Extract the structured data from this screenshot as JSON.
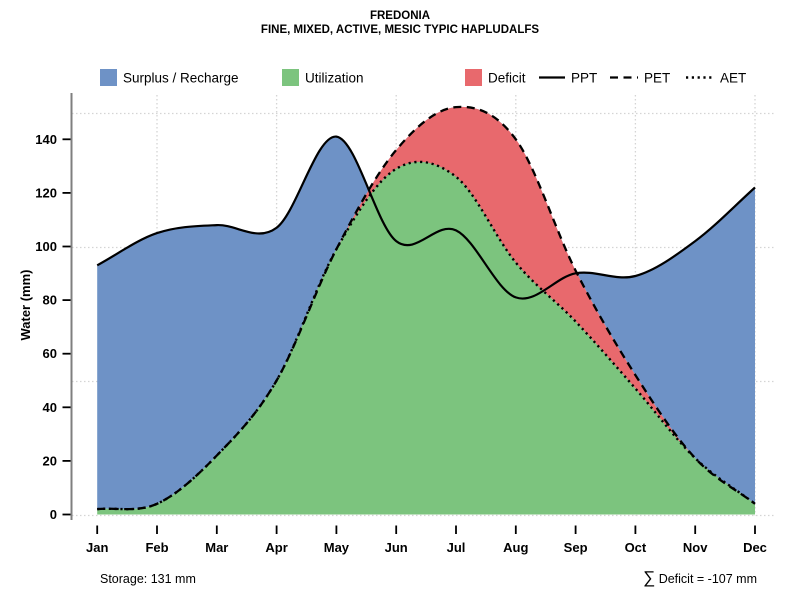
{
  "title": {
    "line1": "FREDONIA",
    "line2": "FINE, MIXED, ACTIVE, MESIC TYPIC HAPLUDALFS"
  },
  "legend": {
    "areas": [
      {
        "label": "Surplus / Recharge",
        "color": "#6E92C6"
      },
      {
        "label": "Utilization",
        "color": "#7CC47E"
      },
      {
        "label": "Deficit",
        "color": "#E8696D"
      }
    ],
    "lines": [
      {
        "label": "PPT",
        "style": "solid"
      },
      {
        "label": "PET",
        "style": "dashed"
      },
      {
        "label": "AET",
        "style": "dotted"
      }
    ]
  },
  "y_axis": {
    "label": "Water (mm)",
    "ticks": [
      0,
      20,
      40,
      60,
      80,
      100,
      120,
      140
    ]
  },
  "x_axis": {
    "months": [
      "Jan",
      "Feb",
      "Mar",
      "Apr",
      "May",
      "Jun",
      "Jul",
      "Aug",
      "Sep",
      "Oct",
      "Nov",
      "Dec"
    ]
  },
  "annotations": {
    "storage": "Storage: 131 mm",
    "sum_symbol": "∑",
    "deficit": " Deficit = -107 mm"
  },
  "colors": {
    "surplus": "#6E92C6",
    "utilization": "#7CC47E",
    "deficit": "#E8696D",
    "grid": "#D4D4D4",
    "axis": "#7F7F7F",
    "line": "#000000"
  },
  "chart_data": {
    "type": "area",
    "title": "FREDONIA — FINE, MIXED, ACTIVE, MESIC TYPIC HAPLUDALFS",
    "xlabel": "",
    "ylabel": "Water (mm)",
    "categories": [
      "Jan",
      "Feb",
      "Mar",
      "Apr",
      "May",
      "Jun",
      "Jul",
      "Aug",
      "Sep",
      "Oct",
      "Nov",
      "Dec"
    ],
    "series": [
      {
        "name": "PPT",
        "style": "solid",
        "values": [
          93,
          105,
          108,
          107,
          141,
          102,
          106,
          81,
          90,
          89,
          102,
          122
        ]
      },
      {
        "name": "PET",
        "style": "dashed",
        "values": [
          2,
          4,
          22,
          50,
          99,
          136,
          152,
          140,
          91,
          52,
          21,
          4
        ]
      },
      {
        "name": "AET",
        "style": "dotted",
        "values": [
          2,
          4,
          22,
          50,
          99,
          129,
          126,
          94,
          72,
          47,
          21,
          4
        ]
      }
    ],
    "areas": [
      {
        "name": "Surplus / Recharge",
        "between": [
          "PPT",
          "PET"
        ],
        "where": "PPT > PET"
      },
      {
        "name": "Utilization",
        "between": [
          "AET",
          "0"
        ]
      },
      {
        "name": "Deficit",
        "between": [
          "PET",
          "AET"
        ],
        "where": "PET > AET"
      }
    ],
    "ylim": [
      0,
      155
    ],
    "y_tick_step": 20,
    "grid": {
      "horizontal_mm": [
        0,
        50,
        100,
        150
      ],
      "vertical_months": [
        "Feb",
        "Apr",
        "Jun",
        "Aug",
        "Oct",
        "Dec"
      ],
      "style": "dotted"
    },
    "legend_position": "top",
    "storage_mm": 131,
    "sum_deficit_mm": -107
  }
}
